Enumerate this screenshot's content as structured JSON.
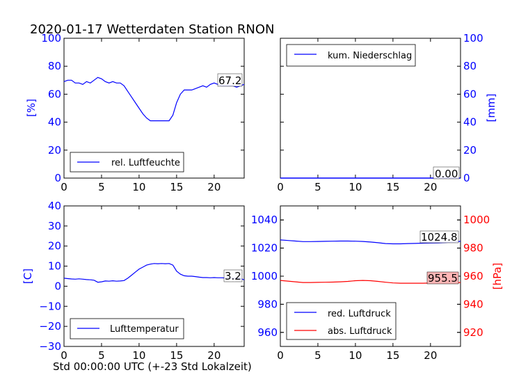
{
  "figure": {
    "title": "2020-01-17 Wetterdaten Station RNON",
    "xlabel": "Std 00:00:00 UTC (+-23 Std Lokalzeit)"
  },
  "colors": {
    "primary": "#0000ff",
    "secondary": "#ff0000",
    "axis": "#000000",
    "annotation_bg": "#ffb6b6"
  },
  "chart_data": [
    {
      "type": "line",
      "panel": "humidity",
      "ylabel": "[%]",
      "xlim": [
        0,
        24
      ],
      "ylim": [
        0,
        100
      ],
      "xticks": [
        "0",
        "5",
        "10",
        "15",
        "20"
      ],
      "yticks": [
        "0",
        "20",
        "40",
        "60",
        "80",
        "100"
      ],
      "legend": "lower-left",
      "series": [
        {
          "name": "rel. Luftfeuchte",
          "x": [
            0,
            0.5,
            1,
            1.5,
            2,
            2.5,
            3,
            3.5,
            4,
            4.5,
            5,
            5.5,
            6,
            6.5,
            7,
            7.5,
            8,
            8.5,
            9,
            9.5,
            10,
            10.5,
            11,
            11.5,
            12,
            12.5,
            13,
            13.5,
            14,
            14.5,
            15,
            15.5,
            16,
            16.5,
            17,
            17.5,
            18,
            18.5,
            19,
            19.5,
            20,
            20.5,
            21,
            21.5,
            22,
            22.5,
            23,
            23.5,
            24
          ],
          "y": [
            69,
            70,
            70,
            68,
            68,
            67,
            69,
            68,
            70,
            72,
            71,
            69,
            68,
            69,
            68,
            68,
            66,
            62,
            58,
            54,
            50,
            46,
            43,
            41,
            41,
            41,
            41,
            41,
            41,
            45,
            54,
            60,
            63,
            63,
            63,
            64,
            65,
            66,
            65,
            67,
            68,
            67,
            66,
            66,
            66,
            66,
            65,
            66,
            67
          ]
        }
      ],
      "annotation": "67.2"
    },
    {
      "type": "line",
      "panel": "precipitation",
      "ylabel": "[mm]",
      "xlim": [
        0,
        24
      ],
      "ylim": [
        0,
        100
      ],
      "xticks": [
        "0",
        "5",
        "10",
        "15",
        "20"
      ],
      "yticks": [
        "0",
        "20",
        "40",
        "60",
        "80",
        "100"
      ],
      "legend": "upper-left",
      "series": [
        {
          "name": "kum. Niederschlag",
          "x": [
            0,
            24
          ],
          "y": [
            0,
            0
          ]
        }
      ],
      "annotation": "0.00"
    },
    {
      "type": "line",
      "panel": "temperature",
      "ylabel": "[C]",
      "xlim": [
        0,
        24
      ],
      "ylim": [
        -30,
        40
      ],
      "xticks": [
        "0",
        "5",
        "10",
        "15",
        "20"
      ],
      "yticks": [
        "−30",
        "−20",
        "−10",
        "0",
        "10",
        "20",
        "30",
        "40"
      ],
      "legend": "lower-left",
      "series": [
        {
          "name": "Lufttemperatur",
          "x": [
            0,
            0.5,
            1,
            1.5,
            2,
            2.5,
            3,
            3.5,
            4,
            4.5,
            5,
            5.5,
            6,
            6.5,
            7,
            7.5,
            8,
            8.5,
            9,
            9.5,
            10,
            10.5,
            11,
            11.5,
            12,
            12.5,
            13,
            13.5,
            14,
            14.5,
            15,
            15.5,
            16,
            16.5,
            17,
            17.5,
            18,
            18.5,
            19,
            19.5,
            20,
            20.5,
            21,
            21.5,
            22,
            22.5,
            23,
            23.5,
            24
          ],
          "y": [
            4,
            3.8,
            3.6,
            3.5,
            3.7,
            3.5,
            3.3,
            3.2,
            3,
            2,
            2.2,
            2.6,
            2.5,
            2.7,
            2.5,
            2.6,
            2.8,
            4,
            5.5,
            7,
            8.5,
            9.5,
            10.5,
            11,
            11.3,
            11.2,
            11.3,
            11.2,
            11.3,
            10.5,
            7.5,
            6,
            5.2,
            5,
            5,
            4.8,
            4.5,
            4.3,
            4.3,
            4.2,
            4.3,
            4.2,
            4.2,
            4.1,
            4.2,
            4,
            3.9,
            3.8,
            3.2
          ]
        }
      ],
      "annotation": "3.2"
    },
    {
      "type": "line",
      "panel": "pressure",
      "ylabel_right": "[hPa]",
      "xlim": [
        0,
        24
      ],
      "ylim": [
        950,
        1050
      ],
      "ylim_right": [
        910,
        1010
      ],
      "xticks": [
        "0",
        "5",
        "10",
        "15",
        "20"
      ],
      "yticks": [
        "960",
        "980",
        "1000",
        "1020",
        "1040"
      ],
      "yticks_right": [
        "920",
        "940",
        "960",
        "980",
        "1000"
      ],
      "legend": "lower-left",
      "series": [
        {
          "name": "red. Luftdruck",
          "axis": "left",
          "x": [
            0,
            1,
            2,
            3,
            4,
            5,
            6,
            7,
            8,
            9,
            10,
            11,
            12,
            13,
            14,
            15,
            16,
            17,
            18,
            19,
            20,
            21,
            22,
            23,
            24
          ],
          "y": [
            1025.8,
            1025.4,
            1025,
            1024.6,
            1024.6,
            1024.7,
            1024.8,
            1024.9,
            1025,
            1025,
            1024.9,
            1024.7,
            1024.3,
            1023.8,
            1023.2,
            1023,
            1023,
            1023.2,
            1023.3,
            1023.5,
            1023.6,
            1023.7,
            1023.9,
            1024.3,
            1024.8
          ]
        },
        {
          "name": "abs. Luftdruck",
          "axis": "right",
          "x": [
            0,
            1,
            2,
            3,
            4,
            5,
            6,
            7,
            8,
            9,
            10,
            11,
            12,
            13,
            14,
            15,
            16,
            17,
            18,
            19,
            20,
            21,
            22,
            23,
            24
          ],
          "y": [
            957,
            956.5,
            956,
            955.5,
            955.5,
            955.6,
            955.7,
            955.8,
            956,
            956.3,
            956.8,
            957,
            956.8,
            956.3,
            955.7,
            955.2,
            955,
            955,
            955,
            955,
            955.1,
            955.2,
            955.3,
            955.4,
            955.5
          ]
        }
      ],
      "annotations": [
        "1024.8",
        "955.5"
      ]
    }
  ]
}
